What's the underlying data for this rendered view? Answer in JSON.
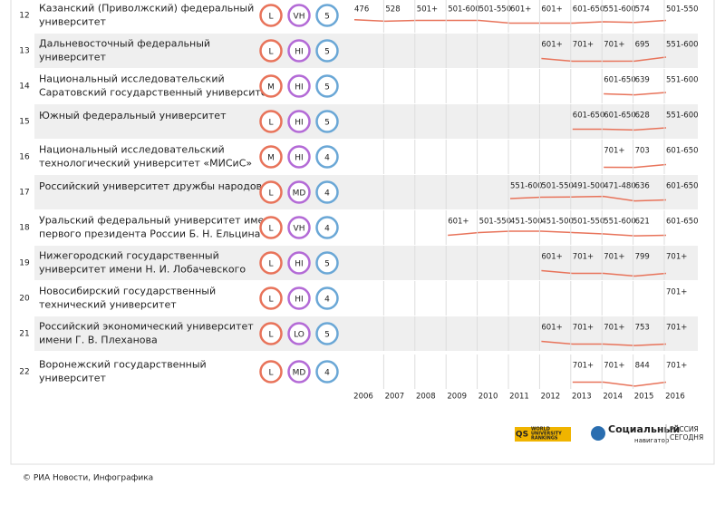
{
  "rows": [
    {
      "number": "12",
      "name_lines": [
        "Казанский (Приволжский) федеральный",
        "университет"
      ],
      "size": "L",
      "focus": "VH",
      "research": "5",
      "ranks": [
        "476",
        "528",
        "501+",
        "501-600",
        "501-550",
        "601+",
        "601+",
        "601-650",
        "551-600",
        "574",
        "501-550"
      ]
    },
    {
      "number": "13",
      "name_lines": [
        "Дальневосточный федеральный",
        "университет"
      ],
      "size": "L",
      "focus": "HI",
      "research": "5",
      "ranks": [
        null,
        null,
        null,
        null,
        null,
        null,
        "601+",
        "701+",
        "701+",
        "695",
        "551-600"
      ]
    },
    {
      "number": "14",
      "name_lines": [
        "Национальный исследовательский",
        "Саратовский государственный университет"
      ],
      "size": "M",
      "focus": "HI",
      "research": "5",
      "ranks": [
        null,
        null,
        null,
        null,
        null,
        null,
        null,
        null,
        "601-650",
        "639",
        "551-600"
      ]
    },
    {
      "number": "15",
      "name_lines": [
        "Южный федеральный университет"
      ],
      "size": "L",
      "focus": "HI",
      "research": "5",
      "ranks": [
        null,
        null,
        null,
        null,
        null,
        null,
        null,
        "601-650",
        "601-650",
        "628",
        "551-600"
      ]
    },
    {
      "number": "16",
      "name_lines": [
        "Национальный исследовательский",
        "технологический университет «МИСиС»"
      ],
      "size": "M",
      "focus": "HI",
      "research": "4",
      "ranks": [
        null,
        null,
        null,
        null,
        null,
        null,
        null,
        null,
        "701+",
        "703",
        "601-650"
      ]
    },
    {
      "number": "17",
      "name_lines": [
        "Российский университет дружбы народов"
      ],
      "size": "L",
      "focus": "MD",
      "research": "4",
      "ranks": [
        null,
        null,
        null,
        null,
        null,
        "551-600",
        "501-550",
        "491-500",
        "471-480",
        "636",
        "601-650"
      ]
    },
    {
      "number": "18",
      "name_lines": [
        "Уральский федеральный университет имени",
        "первого президента России Б. Н. Ельцина"
      ],
      "size": "L",
      "focus": "VH",
      "research": "4",
      "ranks": [
        null,
        null,
        null,
        "601+",
        "501-550",
        "451-500",
        "451-500",
        "501-550",
        "551-600",
        "621",
        "601-650"
      ]
    },
    {
      "number": "19",
      "name_lines": [
        "Нижегородский государственный",
        "университет имени Н. И. Лобачевского"
      ],
      "size": "L",
      "focus": "HI",
      "research": "5",
      "ranks": [
        null,
        null,
        null,
        null,
        null,
        null,
        "601+",
        "701+",
        "701+",
        "799",
        "701+"
      ]
    },
    {
      "number": "20",
      "name_lines": [
        "Новосибирский государственный",
        "технический университет"
      ],
      "size": "L",
      "focus": "HI",
      "research": "4",
      "ranks": [
        null,
        null,
        null,
        null,
        null,
        null,
        null,
        null,
        null,
        null,
        "701+"
      ]
    },
    {
      "number": "21",
      "name_lines": [
        "Российский экономический университет",
        "имени Г. В. Плеханова"
      ],
      "size": "L",
      "focus": "LO",
      "research": "5",
      "ranks": [
        null,
        null,
        null,
        null,
        null,
        null,
        "601+",
        "701+",
        "701+",
        "753",
        "701+"
      ]
    },
    {
      "number": "22",
      "name_lines": [
        "Воронежский государственный",
        "университет"
      ],
      "size": "L",
      "focus": "MD",
      "research": "4",
      "ranks": [
        null,
        null,
        null,
        null,
        null,
        null,
        null,
        "701+",
        "701+",
        "844",
        "701+"
      ]
    }
  ],
  "years": [
    "2006",
    "2007",
    "2008",
    "2009",
    "2010",
    "2011",
    "2012",
    "2013",
    "2014",
    "2015",
    "2016"
  ],
  "logos": {
    "qs": {
      "mark": "QS",
      "lines": [
        "WORLD",
        "UNIVERSITY",
        "RANKINGS"
      ]
    },
    "navigator": {
      "title": "Социальный",
      "subtitle": "навигатор"
    },
    "rossiya": {
      "lines": [
        "РОССИЯ",
        "СЕГОДНЯ"
      ]
    }
  },
  "footer": "© РИА Новости, Инфографика"
}
